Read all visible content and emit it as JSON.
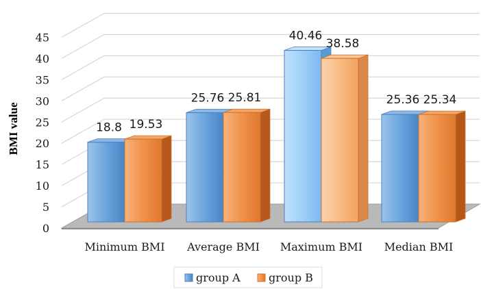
{
  "chart_data": {
    "type": "bar",
    "style": "3d-clustered-column",
    "title": "",
    "ylabel": "BMI value",
    "xlabel": "",
    "categories": [
      "Minimum BMI",
      "Average BMI",
      "Maximum BMI",
      "Median BMI"
    ],
    "series": [
      {
        "name": "group A",
        "values": [
          18.8,
          25.76,
          40.46,
          25.36
        ],
        "color": "#5b9bd5"
      },
      {
        "name": "group B",
        "values": [
          19.53,
          25.81,
          38.58,
          25.34
        ],
        "color": "#ed7d31"
      }
    ],
    "ylim": [
      0,
      45
    ],
    "yticks": [
      0,
      5,
      10,
      15,
      20,
      25,
      30,
      35,
      40,
      45
    ],
    "grid": true,
    "legend_position": "bottom",
    "data_labels": true
  }
}
